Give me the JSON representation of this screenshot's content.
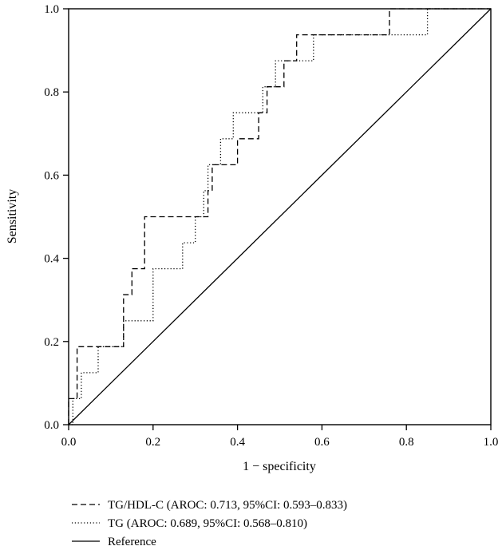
{
  "chart_data": {
    "type": "line",
    "xlabel": "1 − specificity",
    "ylabel": "Sensitivity",
    "xlim": [
      0.0,
      1.0
    ],
    "ylim": [
      0.0,
      1.0
    ],
    "xticks": [
      "0.0",
      "0.2",
      "0.4",
      "0.6",
      "0.8",
      "1.0"
    ],
    "yticks": [
      "0.0",
      "0.2",
      "0.4",
      "0.6",
      "0.8",
      "1.0"
    ],
    "grid": false,
    "legend_position": "bottom",
    "series": [
      {
        "name": "TG/HDL-C (AROC: 0.713, 95%CI: 0.593–0.833)",
        "line_style": "dashed",
        "color": "#000000",
        "x": [
          0.0,
          0.0,
          0.02,
          0.02,
          0.13,
          0.13,
          0.15,
          0.15,
          0.18,
          0.18,
          0.33,
          0.33,
          0.34,
          0.34,
          0.4,
          0.4,
          0.45,
          0.45,
          0.47,
          0.47,
          0.51,
          0.51,
          0.54,
          0.54,
          0.76,
          0.76,
          1.0
        ],
        "y": [
          0.0,
          0.0625,
          0.0625,
          0.1875,
          0.1875,
          0.3125,
          0.3125,
          0.375,
          0.375,
          0.5,
          0.5,
          0.5625,
          0.5625,
          0.625,
          0.625,
          0.6875,
          0.6875,
          0.75,
          0.75,
          0.8125,
          0.8125,
          0.875,
          0.875,
          0.9375,
          0.9375,
          1.0,
          1.0
        ]
      },
      {
        "name": "TG (AROC: 0.689, 95%CI: 0.568–0.810)",
        "line_style": "dotted",
        "color": "#000000",
        "x": [
          0.0,
          0.01,
          0.01,
          0.02,
          0.02,
          0.03,
          0.03,
          0.07,
          0.07,
          0.13,
          0.13,
          0.2,
          0.2,
          0.27,
          0.27,
          0.3,
          0.3,
          0.32,
          0.32,
          0.33,
          0.33,
          0.36,
          0.36,
          0.39,
          0.39,
          0.46,
          0.46,
          0.49,
          0.49,
          0.51,
          0.51,
          0.54,
          0.54,
          0.58,
          0.58,
          0.85,
          0.85,
          1.0
        ],
        "y": [
          0.0,
          0.0,
          0.0625,
          0.0625,
          0.0625,
          0.0625,
          0.125,
          0.125,
          0.1875,
          0.1875,
          0.25,
          0.25,
          0.375,
          0.375,
          0.4375,
          0.4375,
          0.5,
          0.5,
          0.5625,
          0.5625,
          0.625,
          0.625,
          0.6875,
          0.6875,
          0.75,
          0.75,
          0.8125,
          0.8125,
          0.875,
          0.875,
          0.875,
          0.875,
          0.875,
          0.875,
          0.9375,
          0.9375,
          1.0,
          1.0
        ]
      },
      {
        "name": "Reference",
        "line_style": "solid",
        "color": "#000000",
        "x": [
          0.0,
          1.0
        ],
        "y": [
          0.0,
          1.0
        ]
      }
    ]
  }
}
